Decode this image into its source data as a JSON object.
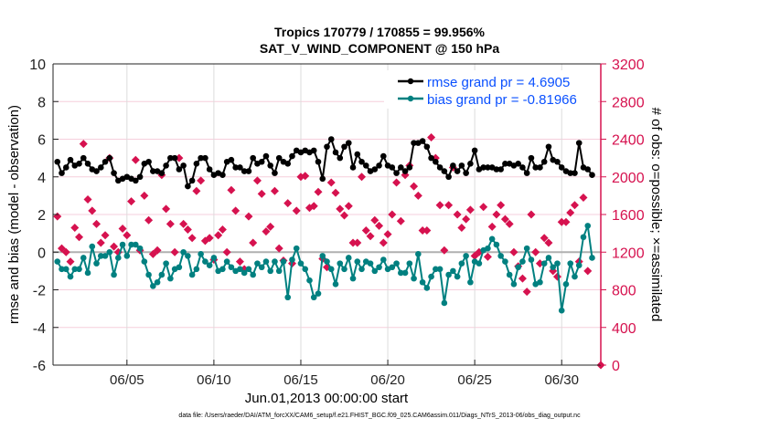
{
  "chart_data": {
    "type": "line",
    "title": "Tropics 170779 / 170855 = 99.956%",
    "subtitle": "SAT_V_WIND_COMPONENT @ 150 hPa",
    "xlabel": "Jun.01,2013 00:00:00 start",
    "ylabel": "rmse and bias (model - observation)",
    "y2label": "# of obs: o=possible; ×=assimilated",
    "footer": "data file: /Users/raeder/DAI/ATM_forcXX/CAM6_setup/f.e21.FHIST_BGC.f09_025.CAM6assim.011/Diags_NTrS_2013-06/obs_diag_output.nc",
    "ylim": [
      -6,
      10
    ],
    "y2lim": [
      0,
      3200
    ],
    "xlim": [
      "2013-05-31T18:00Z",
      "2013-07-02T06:00Z"
    ],
    "yticks": [
      "-6",
      "-4",
      "-2",
      "0",
      "2",
      "4",
      "6",
      "8",
      "10"
    ],
    "y2ticks": [
      "0",
      "400",
      "800",
      "1200",
      "1600",
      "2000",
      "2400",
      "2800",
      "3200"
    ],
    "xticks": [
      {
        "label": "06/05",
        "date": "2013-06-05T00:00Z"
      },
      {
        "label": "06/10",
        "date": "2013-06-10T00:00Z"
      },
      {
        "label": "06/15",
        "date": "2013-06-15T00:00Z"
      },
      {
        "label": "06/20",
        "date": "2013-06-20T00:00Z"
      },
      {
        "label": "06/25",
        "date": "2013-06-25T00:00Z"
      },
      {
        "label": "06/30",
        "date": "2013-06-30T00:00Z"
      }
    ],
    "grid": true,
    "legend_position": "top-right",
    "colors": {
      "rmse": "#000000",
      "bias": "#008080",
      "obs": "#d6124f",
      "zero_line": "#b0b0b0",
      "y2axis": "#d6124f",
      "legend_text": "#0a50ff"
    },
    "x_step_hours": 6,
    "x_first": "2013-06-01T00:00Z",
    "series": [
      {
        "name": "rmse grand pr = 4.6905",
        "axis": "left",
        "values": [
          4.8,
          4.2,
          4.5,
          4.9,
          4.6,
          4.7,
          5.0,
          4.7,
          4.4,
          4.3,
          4.5,
          4.8,
          5.0,
          4.2,
          3.8,
          3.9,
          4.0,
          3.9,
          3.8,
          4.0,
          4.7,
          4.8,
          4.3,
          4.3,
          4.2,
          4.6,
          5.0,
          5.0,
          4.4,
          4.6,
          3.5,
          3.8,
          4.7,
          5.0,
          5.0,
          4.4,
          4.1,
          4.2,
          4.1,
          4.8,
          4.9,
          4.5,
          4.5,
          4.3,
          4.3,
          5.0,
          4.7,
          4.8,
          5.1,
          4.6,
          4.2,
          5.0,
          4.8,
          4.7,
          5.1,
          5.4,
          5.3,
          5.4,
          5.3,
          5.4,
          4.8,
          3.9,
          5.6,
          6.0,
          5.3,
          5.0,
          5.6,
          5.8,
          4.5,
          5.2,
          4.8,
          4.6,
          4.3,
          4.4,
          4.6,
          5.1,
          4.6,
          4.5,
          4.2,
          4.5,
          4.3,
          4.5,
          5.8,
          5.8,
          5.9,
          5.6,
          5.0,
          4.8,
          4.5,
          4.3,
          4.0,
          4.6,
          4.3,
          4.6,
          4.2,
          4.7,
          5.4,
          4.4,
          4.5,
          4.5,
          4.5,
          4.4,
          4.4,
          4.7,
          4.7,
          4.6,
          4.7,
          4.5,
          4.2,
          5.0,
          4.5,
          4.5,
          4.8,
          5.6,
          4.9,
          4.8,
          4.5,
          4.3,
          4.2,
          4.2,
          5.8,
          4.5,
          4.4,
          4.1
        ]
      },
      {
        "name": "bias grand pr = -0.81966",
        "axis": "left",
        "values": [
          -0.5,
          -0.9,
          -0.9,
          -1.3,
          -0.9,
          -0.9,
          -0.3,
          -1.1,
          0.3,
          -0.6,
          -0.2,
          -0.2,
          0.0,
          -1.2,
          -0.3,
          0.4,
          -0.2,
          0.4,
          0.4,
          0.2,
          -0.5,
          -1.2,
          -1.8,
          -1.6,
          -1.2,
          -0.6,
          -1.4,
          -0.9,
          -0.8,
          0.0,
          -0.2,
          -1.2,
          -0.9,
          -0.1,
          -0.5,
          -0.7,
          -0.3,
          -1.0,
          -0.9,
          -0.5,
          -0.8,
          -1.0,
          -0.9,
          -1.1,
          -0.9,
          -1.2,
          -0.6,
          -0.8,
          -0.5,
          -1.0,
          -0.5,
          -1.0,
          -0.5,
          -2.4,
          -0.4,
          0.2,
          -0.6,
          -0.9,
          -1.5,
          -2.4,
          -2.2,
          -0.2,
          -0.5,
          -0.9,
          -1.7,
          -0.6,
          -0.9,
          -0.3,
          -1.4,
          -0.5,
          -0.9,
          -0.5,
          -0.6,
          -1.0,
          -0.8,
          -0.4,
          -0.9,
          -0.8,
          -0.6,
          -1.1,
          -1.1,
          -0.6,
          -1.4,
          -0.1,
          -1.6,
          -1.9,
          -1.3,
          -0.9,
          -0.9,
          -2.7,
          -1.2,
          -1.0,
          -1.3,
          -0.6,
          -0.2,
          -1.6,
          -0.5,
          -0.6,
          0.1,
          0.2,
          0.7,
          0.4,
          -0.2,
          -0.5,
          -1.2,
          -1.7,
          -0.8,
          -0.5,
          0.2,
          -0.4,
          -1.7,
          -1.6,
          -0.6,
          -0.3,
          -0.8,
          -0.6,
          -3.1,
          -1.7,
          -0.6,
          -1.3,
          -0.7,
          0.8,
          1.4,
          -0.3
        ]
      },
      {
        "axis": "right",
        "marker": "diamond",
        "values": [
          1580,
          1240,
          1200,
          1100,
          1460,
          1360,
          2350,
          1760,
          1640,
          1500,
          1300,
          1380,
          2200,
          1260,
          1200,
          1450,
          1380,
          1740,
          2180,
          1220,
          1800,
          1540,
          1180,
          1220,
          2020,
          1660,
          1500,
          1200,
          2200,
          1500,
          1440,
          1350,
          1850,
          1960,
          1320,
          1350,
          1120,
          1380,
          1440,
          1200,
          1860,
          1640,
          1100,
          1020,
          1580,
          1300,
          1960,
          1820,
          1420,
          1470,
          1850,
          1240,
          1110,
          1720,
          1080,
          1640,
          2000,
          2010,
          1670,
          1690,
          1840,
          1130,
          1040,
          1940,
          1830,
          1660,
          1590,
          1690,
          1300,
          1300,
          2000,
          1430,
          1370,
          1540,
          1480,
          1300,
          1390,
          1600,
          1940,
          1530,
          2020,
          2120,
          1900,
          1800,
          1430,
          1430,
          2420,
          2200,
          1700,
          1220,
          1700,
          2100,
          1600,
          1460,
          1550,
          1650,
          1160,
          1200,
          1680,
          1150,
          1470,
          1600,
          1700,
          1550,
          1500,
          1200,
          1050,
          920,
          780,
          1600,
          1200,
          1080,
          1350,
          1300,
          1000,
          940,
          1520,
          1520,
          1620,
          1700,
          1100,
          1780,
          1000,
          0
        ]
      }
    ]
  }
}
